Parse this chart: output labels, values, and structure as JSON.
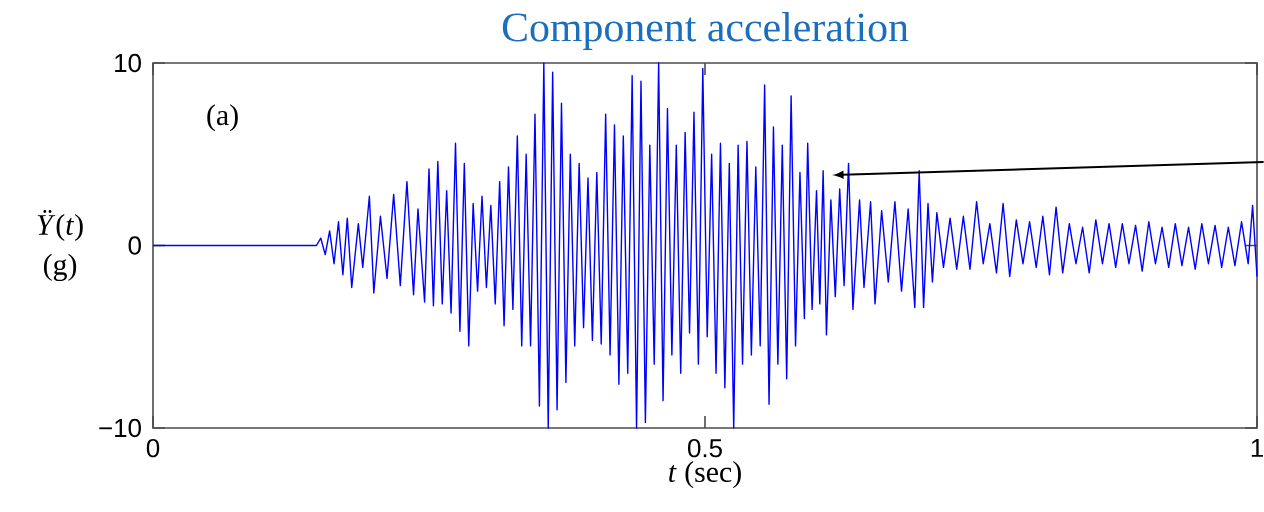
{
  "chart_data": {
    "type": "line",
    "title": "Component acceleration",
    "xlabel": "*t* (sec)",
    "ylabel": "*Ÿ*(*t*) (g)",
    "annotations": [
      "(a)"
    ],
    "color": "#0000ff",
    "xlim": [
      0,
      1
    ],
    "ylim": [
      -10,
      10
    ],
    "xticks": [
      0,
      0.5,
      1
    ],
    "yticks": [
      {
        "value": -10,
        "label": "−10"
      },
      0,
      10
    ],
    "x": [
      0,
      0.148,
      0.152,
      0.156,
      0.16,
      0.164,
      0.168,
      0.172,
      0.176,
      0.18,
      0.186,
      0.19,
      0.196,
      0.2,
      0.206,
      0.212,
      0.218,
      0.224,
      0.23,
      0.236,
      0.24,
      0.246,
      0.25,
      0.254,
      0.258,
      0.262,
      0.266,
      0.27,
      0.274,
      0.278,
      0.282,
      0.286,
      0.29,
      0.294,
      0.298,
      0.302,
      0.306,
      0.31,
      0.314,
      0.318,
      0.322,
      0.326,
      0.33,
      0.334,
      0.338,
      0.342,
      0.346,
      0.35,
      0.354,
      0.358,
      0.362,
      0.366,
      0.37,
      0.374,
      0.378,
      0.382,
      0.386,
      0.39,
      0.394,
      0.398,
      0.402,
      0.406,
      0.41,
      0.414,
      0.418,
      0.422,
      0.426,
      0.43,
      0.434,
      0.438,
      0.442,
      0.446,
      0.45,
      0.454,
      0.458,
      0.462,
      0.466,
      0.47,
      0.474,
      0.478,
      0.482,
      0.486,
      0.49,
      0.494,
      0.498,
      0.502,
      0.506,
      0.51,
      0.514,
      0.518,
      0.522,
      0.526,
      0.53,
      0.534,
      0.538,
      0.542,
      0.546,
      0.55,
      0.554,
      0.558,
      0.562,
      0.566,
      0.57,
      0.574,
      0.578,
      0.582,
      0.586,
      0.59,
      0.593,
      0.597,
      0.601,
      0.604,
      0.607,
      0.61,
      0.614,
      0.618,
      0.622,
      0.626,
      0.63,
      0.634,
      0.64,
      0.644,
      0.65,
      0.654,
      0.66,
      0.666,
      0.672,
      0.678,
      0.684,
      0.69,
      0.694,
      0.698,
      0.702,
      0.706,
      0.71,
      0.716,
      0.722,
      0.728,
      0.734,
      0.74,
      0.746,
      0.752,
      0.758,
      0.764,
      0.77,
      0.776,
      0.782,
      0.788,
      0.794,
      0.8,
      0.806,
      0.812,
      0.818,
      0.824,
      0.83,
      0.836,
      0.842,
      0.848,
      0.854,
      0.86,
      0.866,
      0.872,
      0.878,
      0.884,
      0.89,
      0.896,
      0.902,
      0.908,
      0.914,
      0.92,
      0.926,
      0.932,
      0.938,
      0.944,
      0.95,
      0.956,
      0.962,
      0.968,
      0.974,
      0.98,
      0.986,
      0.992,
      0.996,
      1.0
    ],
    "values": [
      0,
      0,
      0.4,
      -0.5,
      0.8,
      -1.0,
      1.3,
      -1.6,
      1.5,
      -2.3,
      1.2,
      -1.2,
      2.7,
      -2.6,
      1.6,
      -1.8,
      2.8,
      -2.2,
      3.5,
      -2.7,
      2.0,
      -3.1,
      4.2,
      -3.3,
      4.6,
      -3.2,
      3.0,
      -3.7,
      5.6,
      -4.7,
      4.5,
      -5.5,
      2.3,
      -2.5,
      2.7,
      -2.3,
      2.2,
      -3.2,
      3.5,
      -4.4,
      4.3,
      -3.5,
      6.0,
      -5.5,
      5.0,
      -5.5,
      7.2,
      -8.8,
      10,
      -10,
      9.5,
      -9.0,
      7.8,
      -7.5,
      5.0,
      -5.5,
      4.5,
      -4.5,
      3.7,
      -5.2,
      4.0,
      -5.4,
      7.2,
      -6.0,
      6.6,
      -7.6,
      6.0,
      -7.0,
      9.3,
      -10,
      9.0,
      -9.7,
      5.5,
      -6.5,
      10,
      -8.5,
      7.5,
      -6.0,
      5.5,
      -7.0,
      6.2,
      -4.8,
      7.3,
      -6.5,
      9.7,
      -5.0,
      5.0,
      -7.0,
      5.6,
      -7.8,
      4.5,
      -10,
      5.5,
      -6.5,
      5.7,
      -6.0,
      4.3,
      -5.5,
      8.8,
      -8.7,
      6.5,
      -6.5,
      5.5,
      -7.3,
      8.2,
      -5.5,
      4.0,
      -4.0,
      5.6,
      -3.5,
      3.0,
      -3.2,
      4.1,
      -4.9,
      2.5,
      -2.8,
      3.1,
      -2.2,
      4.5,
      -3.5,
      2.5,
      -2.3,
      2.4,
      -3.2,
      1.9,
      -2.0,
      2.4,
      -2.5,
      2.0,
      -3.4,
      4.1,
      -3.4,
      2.3,
      -2.0,
      1.8,
      -1.2,
      1.5,
      -1.3,
      1.6,
      -1.3,
      2.4,
      -1.0,
      1.2,
      -1.5,
      2.3,
      -1.7,
      1.4,
      -1.0,
      1.3,
      -1.2,
      1.6,
      -1.6,
      2.1,
      -1.5,
      1.2,
      -1.0,
      1.0,
      -1.5,
      1.4,
      -1.0,
      1.2,
      -1.2,
      1.2,
      -1.0,
      1.1,
      -1.4,
      1.3,
      -1.0,
      1.0,
      -1.2,
      1.2,
      -1.1,
      1.0,
      -1.3,
      1.2,
      -1.0,
      1.1,
      -1.2,
      1.0,
      -1.1,
      1.3,
      -1.0,
      2.2,
      -1.7
    ]
  }
}
